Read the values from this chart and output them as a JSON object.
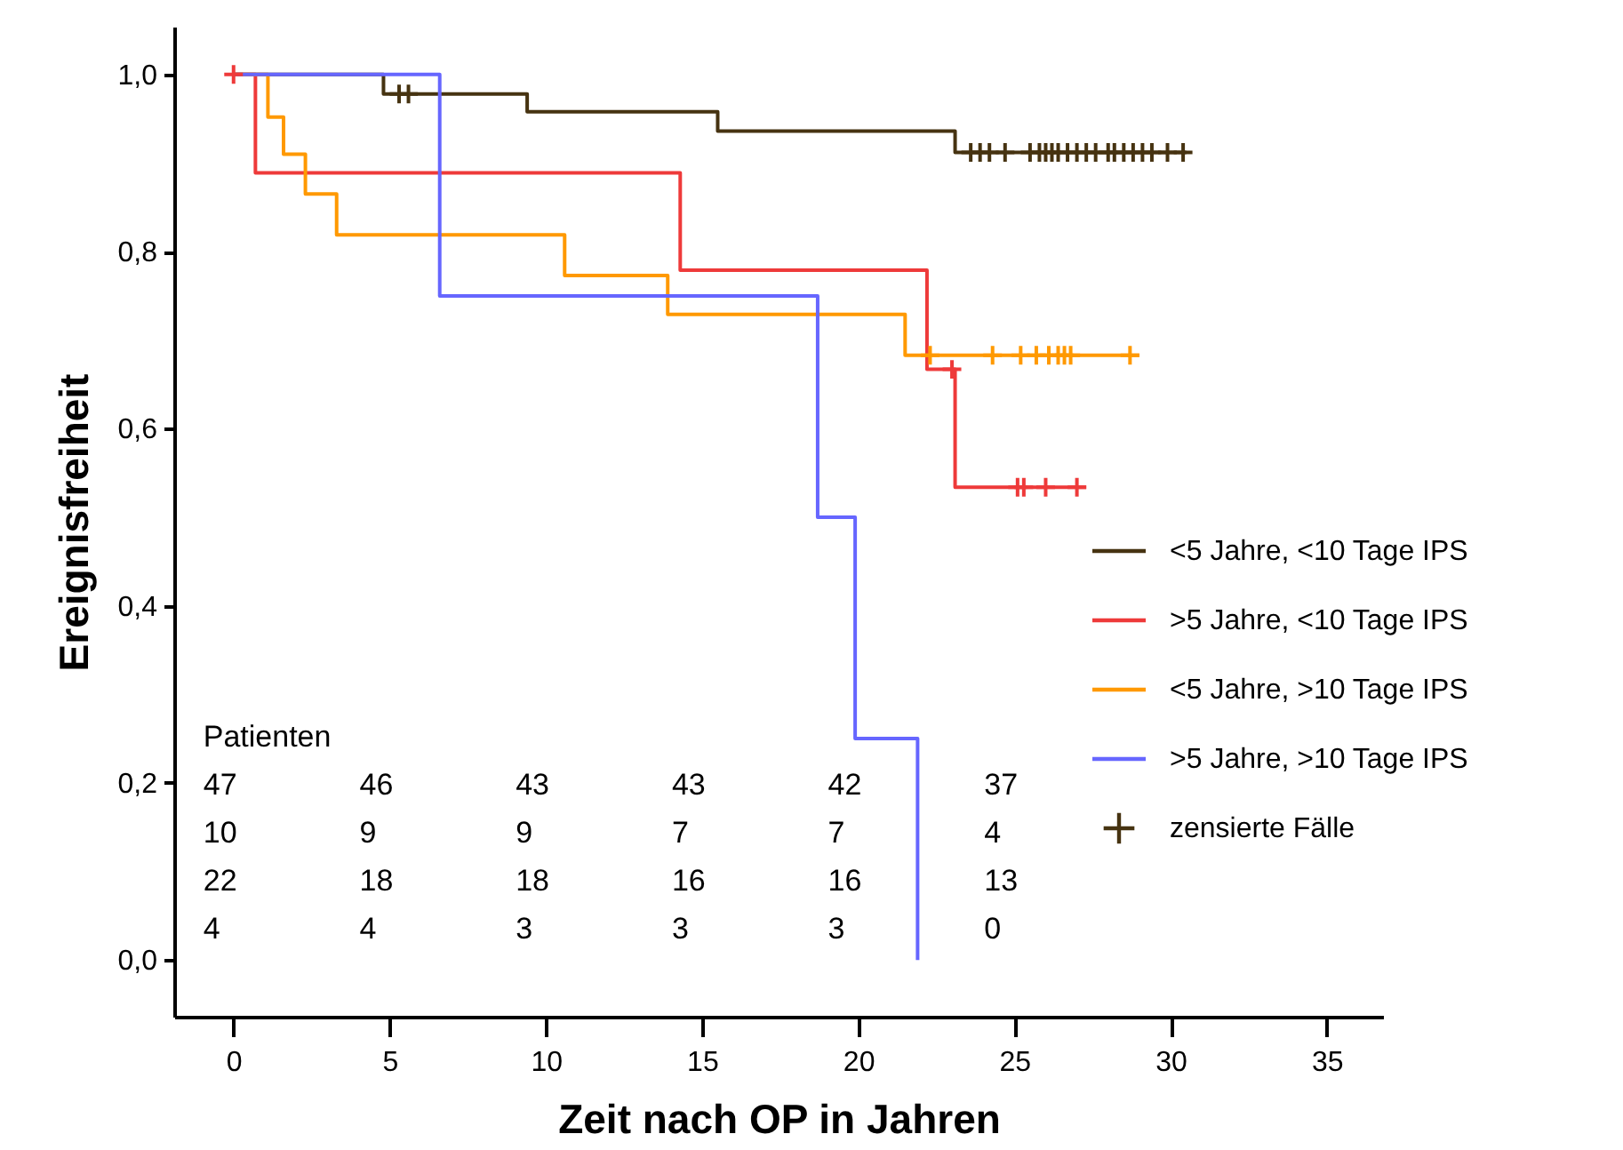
{
  "chart_data": {
    "type": "step",
    "xlabel": "Zeit nach OP in Jahren",
    "ylabel": "Ereignisfreiheit",
    "xlim": [
      -1.9,
      36.8
    ],
    "ylim": [
      -0.064,
      1.054
    ],
    "xticks": [
      0,
      5,
      10,
      15,
      20,
      25,
      30,
      35
    ],
    "yticks": [
      {
        "value": 0,
        "label": "0,0"
      },
      {
        "value": 0.2,
        "label": "0,2"
      },
      {
        "value": 0.4,
        "label": "0,4"
      },
      {
        "value": 0.6,
        "label": "0,6"
      },
      {
        "value": 0.8,
        "label": "0,8"
      },
      {
        "value": 1,
        "label": "1,0"
      }
    ],
    "grid": false,
    "legend": "right",
    "series": [
      {
        "name": "<5 Jahre, <10 Tage IPS",
        "color": "#463311",
        "x": [
          0,
          4.8,
          9.4,
          15.5,
          23.1,
          30.5
        ],
        "values": [
          1,
          0.978,
          0.958,
          0.936,
          0.912,
          0.912
        ]
      },
      {
        "name": ">5 Jahre, <10 Tage IPS",
        "color": "#ee3a3a",
        "x": [
          0,
          0.7,
          14.3,
          22.2,
          23.1,
          27.3
        ],
        "values": [
          1,
          0.889,
          0.779,
          0.667,
          0.534,
          0.534
        ]
      },
      {
        "name": "<5 Jahre, >10 Tage IPS",
        "color": "#ff9900",
        "x": [
          0,
          1.1,
          1.6,
          2.3,
          3.3,
          10.6,
          13.9,
          21.5,
          29.0
        ],
        "values": [
          1,
          0.952,
          0.91,
          0.865,
          0.819,
          0.773,
          0.729,
          0.683,
          0.683
        ]
      },
      {
        "name": ">5 Jahre, >10 Tage IPS",
        "color": "#6666ff",
        "x": [
          0,
          6.6,
          18.7,
          19.9,
          21.9
        ],
        "values": [
          1,
          0.75,
          0.5,
          0.25,
          0
        ]
      },
      {
        "name": "zensierte Fälle",
        "type": "scatter",
        "marker": "cross",
        "color": "#463311",
        "x": [
          5.3,
          5.6,
          23.6,
          23.9,
          24.2,
          24.7,
          25.5,
          25.8,
          26.0,
          26.2,
          26.4,
          26.7,
          27.0,
          27.3,
          27.6,
          28.0,
          28.2,
          28.5,
          28.8,
          29.1,
          29.4,
          29.9,
          30.4
        ],
        "values": [
          0.978,
          0.978,
          0.912,
          0.912,
          0.912,
          0.912,
          0.912,
          0.912,
          0.912,
          0.912,
          0.912,
          0.912,
          0.912,
          0.912,
          0.912,
          0.912,
          0.912,
          0.912,
          0.912,
          0.912,
          0.912,
          0.912,
          0.912
        ]
      },
      {
        "type": "scatter",
        "marker": "cross",
        "color": "#ee3a3a",
        "x": [
          0,
          23.0,
          25.1,
          25.3,
          26.0,
          27.0
        ],
        "values": [
          1,
          0.667,
          0.534,
          0.534,
          0.534,
          0.534
        ]
      },
      {
        "type": "scatter",
        "marker": "cross",
        "color": "#ff9900",
        "x": [
          22.3,
          24.3,
          25.2,
          25.7,
          26.1,
          26.4,
          26.6,
          26.8,
          28.7
        ],
        "values": [
          0.683,
          0.683,
          0.683,
          0.683,
          0.683,
          0.683,
          0.683,
          0.683,
          0.683
        ]
      }
    ],
    "annotations": [
      "Patienten",
      "47",
      "46",
      "43",
      "43",
      "42",
      "37",
      "10",
      "9",
      "9",
      "7",
      "7",
      "4",
      "22",
      "18",
      "18",
      "16",
      "16",
      "13",
      "4",
      "4",
      "3",
      "3",
      "3",
      "0"
    ]
  }
}
